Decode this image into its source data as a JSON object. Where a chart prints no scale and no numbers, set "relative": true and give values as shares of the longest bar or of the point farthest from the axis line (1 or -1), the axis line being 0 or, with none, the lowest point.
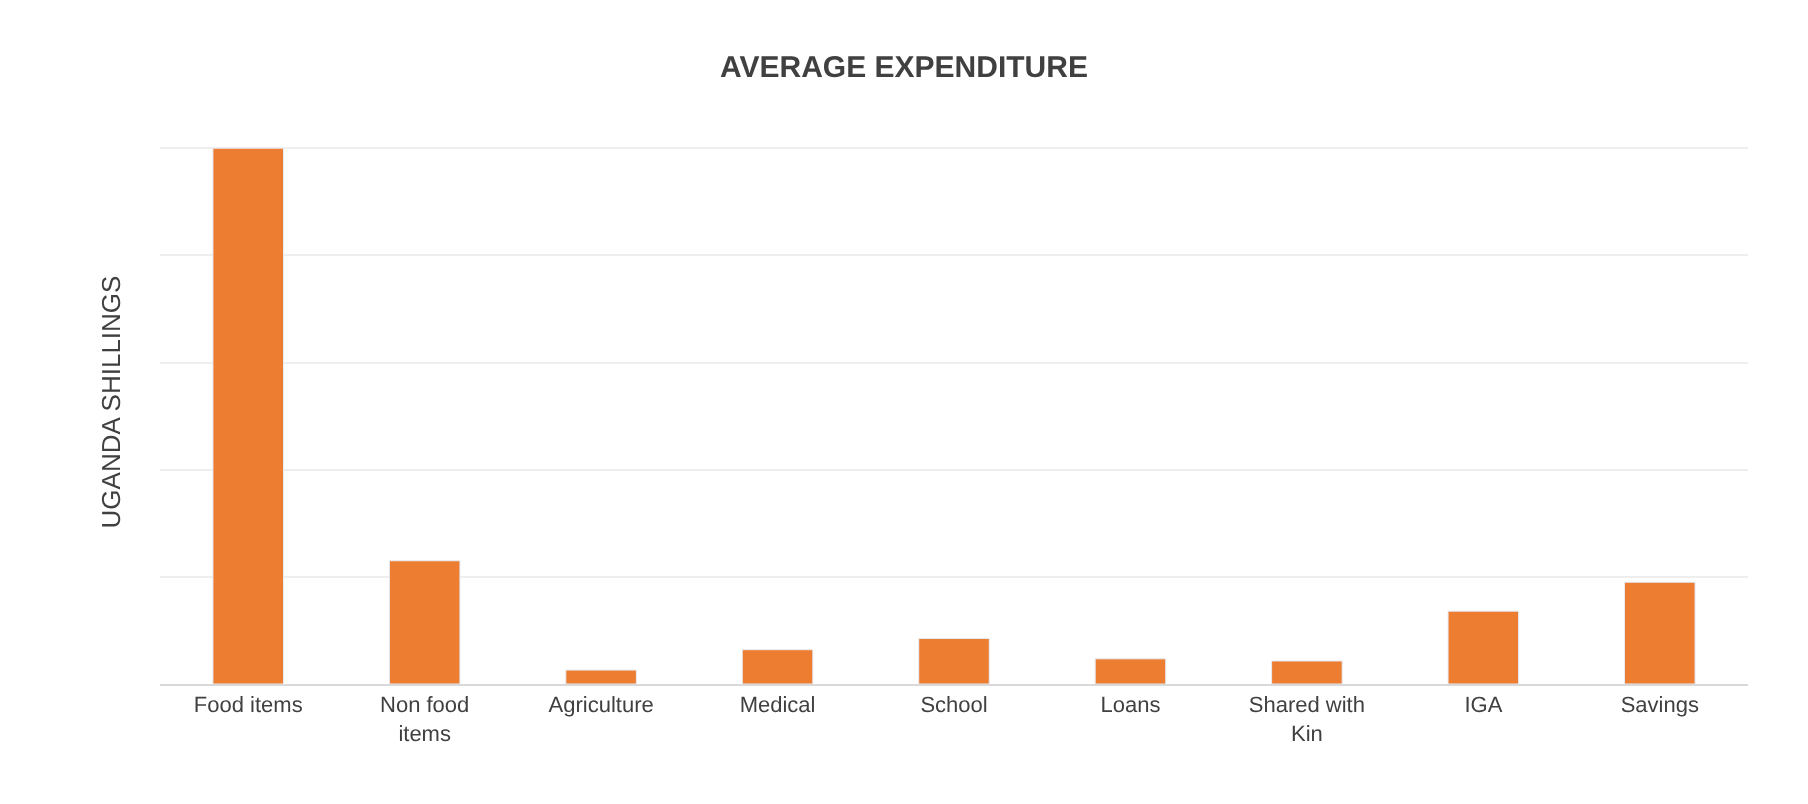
{
  "chart_data": {
    "type": "bar",
    "title": "AVERAGE EXPENDITURE",
    "ylabel": "UGANDA SHILLINGS",
    "categories": [
      "Food items",
      "Non food items",
      "Agriculture",
      "Medical",
      "School",
      "Loans",
      "Shared with Kin",
      "IGA",
      "Savings"
    ],
    "values": [
      1,
      0.23,
      0.026,
      0.064,
      0.085,
      0.047,
      0.043,
      0.136,
      0.19
    ],
    "color": "#ed7d31",
    "relative": true,
    "grid": "y",
    "legend": false
  }
}
